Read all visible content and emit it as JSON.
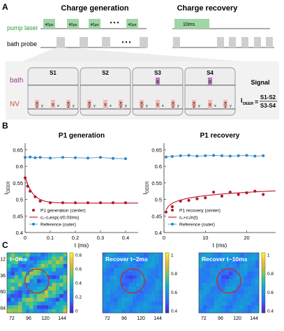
{
  "panel_labels": {
    "a": "A",
    "b": "B",
    "c": "C"
  },
  "panel_a": {
    "title_left": "Charge generation",
    "title_right": "Charge recovery",
    "row_pump": "pump laser",
    "row_probe": "bath probe",
    "pump_pulse_label": "40μs",
    "recovery_pulse_label": "10ms",
    "ellipsis": "• • •",
    "segments": [
      "S1",
      "S2",
      "S3",
      "S4"
    ],
    "row_bath": "bath",
    "row_nv": "NV",
    "pi": "π",
    "half_num": "π",
    "half_den": "2",
    "x": "x",
    "y": "y",
    "signal_title": "Signal",
    "signal_lhs": "I",
    "signal_sub": "DEER",
    "signal_num": "S1-S2",
    "signal_den": "S3-S4",
    "colors": {
      "pump": "#9fd6a6",
      "probe": "#cfcfcf",
      "pulse_red": "#f2b8b4",
      "pulse_purple": "#b27fb5",
      "panel_bg": "#eeeeee",
      "green_text": "#2a9d3c",
      "bath_text": "#8b3c8f",
      "nv_text": "#d0503c"
    }
  },
  "panel_b": {
    "left": {
      "title": "P1 generation",
      "ylabel_main": "I",
      "ylabel_sub": "DEER",
      "xlabel": "t (ms)",
      "yticks": [
        "0.4",
        "0.45",
        "0.5",
        "0.55",
        "0.6",
        "0.65"
      ],
      "xticks": [
        "0",
        "0.1",
        "0.2",
        "0.3",
        "0.4"
      ],
      "legend": [
        "P1 generation (center)",
        "c₀-c₁exp(-t/0.03ms)",
        "Reference (outer)"
      ]
    },
    "right": {
      "title": "P1 recovery",
      "ylabel_main": "I",
      "ylabel_sub": "DEER",
      "xlabel": "t (ms)",
      "yticks": [
        "0.4",
        "0.45",
        "0.5",
        "0.55",
        "0.6",
        "0.65"
      ],
      "xticks": [
        "0",
        "10",
        "20"
      ],
      "legend": [
        "P1 recovery (center)",
        "c₀+c₁ln(t)",
        "Reference (outer)"
      ]
    }
  },
  "chart_data": [
    {
      "type": "scatter",
      "title": "P1 generation",
      "xlabel": "t (ms)",
      "ylabel": "IDEER",
      "xlim": [
        0,
        0.45
      ],
      "ylim": [
        0.4,
        0.67
      ],
      "series": [
        {
          "name": "P1 generation (center)",
          "color": "#b5162b",
          "x": [
            0.0,
            0.01,
            0.02,
            0.04,
            0.06,
            0.1,
            0.15,
            0.2,
            0.25,
            0.3,
            0.35,
            0.4
          ],
          "y": [
            0.565,
            0.54,
            0.525,
            0.508,
            0.495,
            0.49,
            0.49,
            0.49,
            0.49,
            0.49,
            0.49,
            0.49
          ]
        },
        {
          "name": "Reference (outer)",
          "color": "#2a86c8",
          "x": [
            0.0,
            0.02,
            0.04,
            0.06,
            0.1,
            0.15,
            0.2,
            0.25,
            0.3,
            0.35,
            0.4
          ],
          "y": [
            0.627,
            0.628,
            0.626,
            0.627,
            0.625,
            0.627,
            0.626,
            0.625,
            0.627,
            0.624,
            0.623
          ]
        },
        {
          "name": "c₀-c₁exp(-t/0.03ms)",
          "color": "#b5162b",
          "type": "line",
          "model": {
            "c0": 0.489,
            "c1": 0.08,
            "tau": 0.03
          }
        }
      ]
    },
    {
      "type": "scatter",
      "title": "P1 recovery",
      "xlabel": "t (ms)",
      "ylabel": "IDEER",
      "xlim": [
        0,
        27
      ],
      "ylim": [
        0.4,
        0.67
      ],
      "series": [
        {
          "name": "P1 recovery (center)",
          "color": "#b5162b",
          "x": [
            0.5,
            2,
            4,
            6,
            8,
            10,
            12,
            14,
            16,
            18,
            20,
            22,
            24
          ],
          "y": [
            0.462,
            0.478,
            0.495,
            0.497,
            0.502,
            0.505,
            0.522,
            0.51,
            0.522,
            0.515,
            0.52,
            0.525,
            0.515
          ]
        },
        {
          "name": "Reference (outer)",
          "color": "#2a86c8",
          "x": [
            0.5,
            2,
            4,
            6,
            8,
            10,
            12,
            14,
            16,
            18,
            20,
            22,
            24
          ],
          "y": [
            0.628,
            0.63,
            0.632,
            0.633,
            0.631,
            0.632,
            0.633,
            0.632,
            0.631,
            0.632,
            0.633,
            0.631,
            0.632
          ]
        },
        {
          "name": "c₀+c₁ln(t)",
          "color": "#b5162b",
          "type": "line",
          "model": {
            "c0": 0.478,
            "c1": 0.0145
          }
        }
      ]
    }
  ],
  "panel_c": {
    "maps": [
      {
        "label": "t~0ms",
        "xticks": [
          "72",
          "96",
          "120",
          "144"
        ],
        "yticks": [
          "12",
          "36",
          "60",
          "84"
        ],
        "cbar_ticks": [
          "0.8",
          "0.6",
          "0.4",
          "0.2",
          "0"
        ],
        "seed": 11
      },
      {
        "label": "Recover t~2ms",
        "xticks": [
          "72",
          "96",
          "120",
          "144"
        ],
        "yticks": [],
        "cbar_ticks": [
          "1",
          "0.8",
          "0.6",
          "0.4"
        ],
        "seed": 23
      },
      {
        "label": "Recover t~10ms",
        "xticks": [
          "72",
          "96",
          "120",
          "144"
        ],
        "yticks": [],
        "cbar_ticks": [
          "1",
          "0.8",
          "0.6",
          "0.4"
        ],
        "seed": 37
      }
    ],
    "colormap": [
      "#3e26a8",
      "#4340e8",
      "#2b6ffc",
      "#1e8fe0",
      "#11aad1",
      "#2ec09f",
      "#7cc75e",
      "#c7bd3c",
      "#f5c23a",
      "#f9fb15"
    ]
  }
}
